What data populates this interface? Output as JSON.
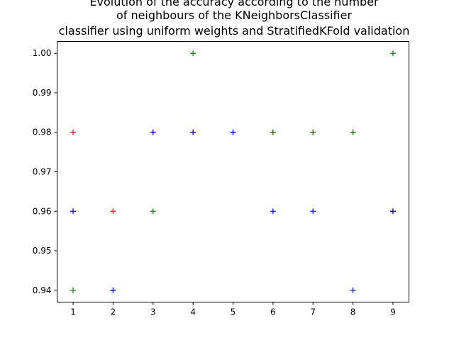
{
  "chart_data": {
    "type": "scatter",
    "title_lines": [
      "Evolution of the accuracy according to the number",
      "of neighbours of the KNeighborsClassifier",
      "classifier using uniform weights and StratifiedKFold validation"
    ],
    "xlabel": "",
    "ylabel": "",
    "xlim": [
      0.6,
      9.4
    ],
    "ylim": [
      0.937,
      1.003
    ],
    "x_ticks": [
      1,
      2,
      3,
      4,
      5,
      6,
      7,
      8,
      9
    ],
    "y_ticks": [
      0.94,
      0.95,
      0.96,
      0.97,
      0.98,
      0.99,
      1.0
    ],
    "y_tick_labels": [
      "0.94",
      "0.95",
      "0.96",
      "0.97",
      "0.98",
      "0.99",
      "1.00"
    ],
    "marker": "+",
    "grid": false,
    "series": [
      {
        "color": "#ff0000",
        "x": [
          1,
          2,
          3,
          4,
          5,
          6,
          7,
          8,
          9
        ],
        "y": [
          0.98,
          0.96,
          0.98,
          0.98,
          0.98,
          0.98,
          0.98,
          0.98,
          0.96
        ]
      },
      {
        "color": "#008000",
        "x": [
          1,
          2,
          3,
          4,
          5,
          6,
          7,
          8,
          9
        ],
        "y": [
          0.94,
          0.94,
          0.96,
          1.0,
          0.98,
          0.98,
          0.98,
          0.98,
          1.0
        ]
      },
      {
        "color": "#0000ff",
        "x": [
          1,
          2,
          3,
          4,
          5,
          6,
          7,
          8,
          9
        ],
        "y": [
          0.96,
          0.94,
          0.98,
          0.98,
          0.98,
          0.96,
          0.96,
          0.94,
          0.96
        ]
      }
    ]
  }
}
